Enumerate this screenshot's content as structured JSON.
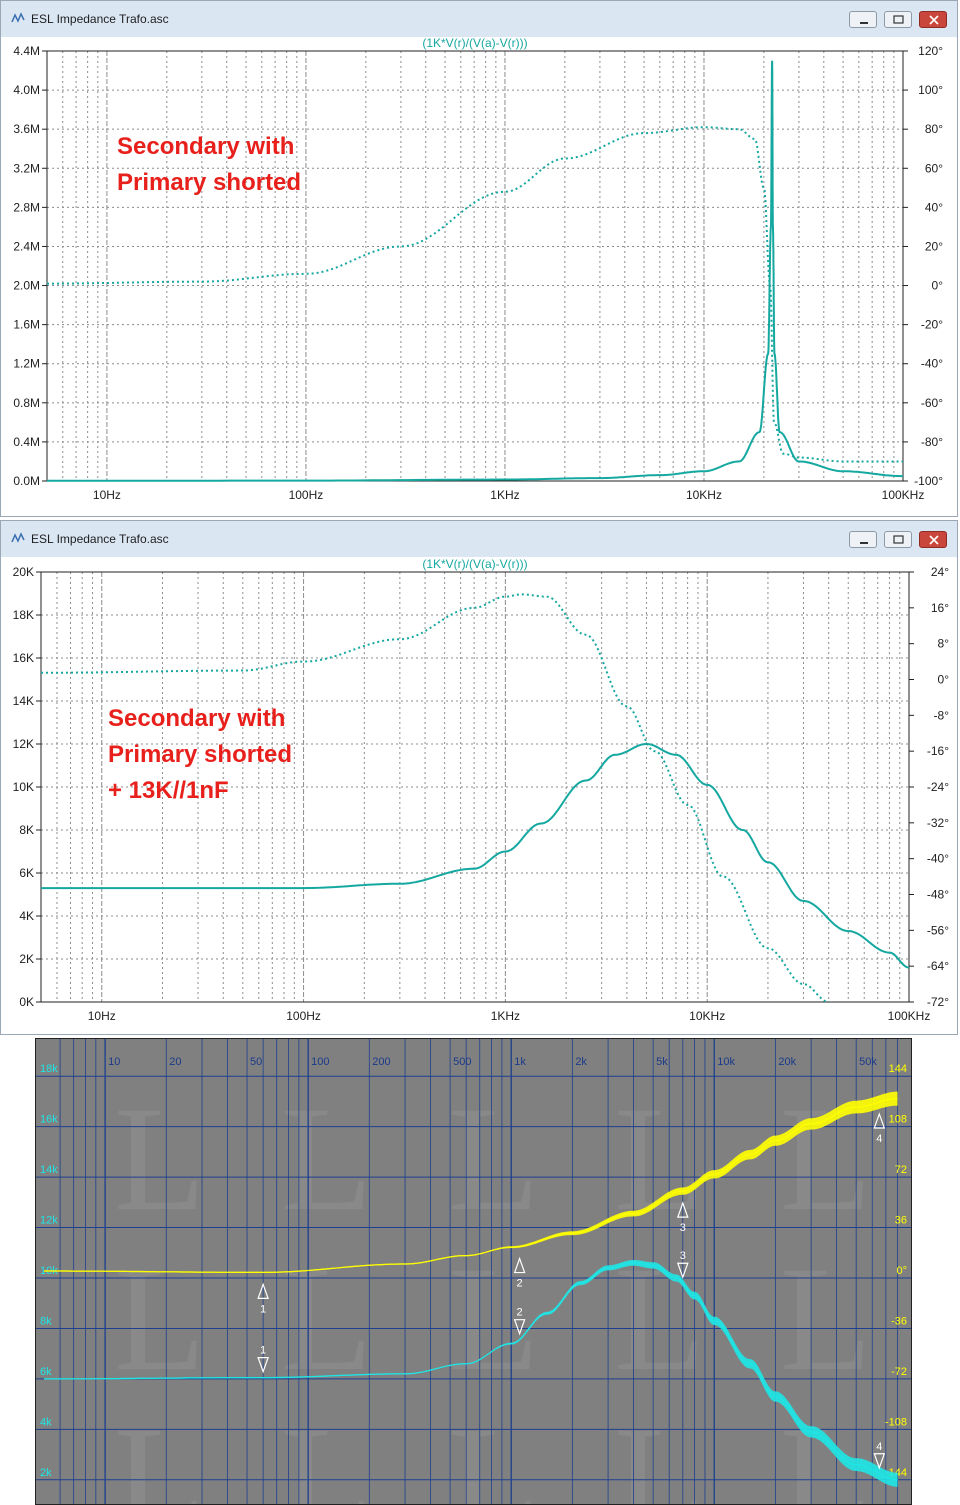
{
  "windows": [
    {
      "title": "ESL Impedance Trafo.asc",
      "trace_label": "(1K*V(r)/(V(a)-V(r)))"
    },
    {
      "title": "ESL Impedance Trafo.asc",
      "trace_label": "(1K*V(r)/(V(a)-V(r)))"
    }
  ],
  "colors": {
    "trace": "#14a8a0",
    "grid": "#8c8c8c",
    "annotation": "#e8201c",
    "panel_bg": "#808080",
    "panel_grid": "#1c3f8f",
    "cyan": "#1ee6e6",
    "yellow": "#ffff00"
  },
  "icons": [
    "chart-app-icon",
    "minimize-icon",
    "restore-icon",
    "close-icon"
  ],
  "chart_data": [
    {
      "type": "line",
      "x_scale": "log",
      "xlim": [
        5,
        100000
      ],
      "x_ticks": [
        10,
        100,
        1000,
        10000,
        100000
      ],
      "x_tick_labels": [
        "10Hz",
        "100Hz",
        "1KHz",
        "10KHz",
        "100KHz"
      ],
      "ylim": [
        0,
        4.4
      ],
      "y_ticks": [
        0,
        0.4,
        0.8,
        1.2,
        1.6,
        2.0,
        2.4,
        2.8,
        3.2,
        3.6,
        4.0,
        4.4
      ],
      "y_tick_labels": [
        "0.0M",
        "0.4M",
        "0.8M",
        "1.2M",
        "1.6M",
        "2.0M",
        "2.4M",
        "2.8M",
        "3.2M",
        "3.6M",
        "4.0M",
        "4.4M"
      ],
      "y2lim": [
        -100,
        120
      ],
      "y2_ticks": [
        -100,
        -80,
        -60,
        -40,
        -20,
        0,
        20,
        40,
        60,
        80,
        100,
        120
      ],
      "y2_tick_labels": [
        "-100°",
        "-80°",
        "-60°",
        "-40°",
        "-20°",
        "0°",
        "20°",
        "40°",
        "60°",
        "80°",
        "100°",
        "120°"
      ],
      "grid": true,
      "annotation_lines": [
        "Secondary with",
        "Primary shorted"
      ],
      "series": [
        {
          "style": "solid",
          "axis": "left",
          "x": [
            5,
            100,
            1000,
            3000,
            6000,
            10000,
            15000,
            19000,
            21000,
            21700,
            22000,
            22200,
            22600,
            24000,
            30000,
            50000,
            100000
          ],
          "y": [
            0.002,
            0.004,
            0.015,
            0.03,
            0.06,
            0.1,
            0.2,
            0.5,
            1.3,
            2.6,
            4.3,
            2.6,
            1.3,
            0.5,
            0.2,
            0.1,
            0.05
          ]
        },
        {
          "style": "dotted",
          "axis": "right",
          "x": [
            5,
            30,
            100,
            300,
            1000,
            2000,
            5000,
            10000,
            15000,
            18000,
            20000,
            21500,
            22500,
            25000,
            30000,
            50000,
            100000
          ],
          "y": [
            1,
            2,
            6,
            20,
            48,
            65,
            78,
            81,
            80,
            75,
            50,
            0,
            -70,
            -86,
            -88,
            -90,
            -90
          ]
        }
      ]
    },
    {
      "type": "line",
      "x_scale": "log",
      "xlim": [
        5,
        100000
      ],
      "x_ticks": [
        10,
        100,
        1000,
        10000,
        100000
      ],
      "x_tick_labels": [
        "10Hz",
        "100Hz",
        "1KHz",
        "10KHz",
        "100KHz"
      ],
      "ylim": [
        0,
        20
      ],
      "y_ticks": [
        0,
        2,
        4,
        6,
        8,
        10,
        12,
        14,
        16,
        18,
        20
      ],
      "y_tick_labels": [
        "0K",
        "2K",
        "4K",
        "6K",
        "8K",
        "10K",
        "12K",
        "14K",
        "16K",
        "18K",
        "20K"
      ],
      "y2lim": [
        -72,
        24
      ],
      "y2_ticks": [
        -72,
        -64,
        -56,
        -48,
        -40,
        -32,
        -24,
        -16,
        -8,
        0,
        8,
        16,
        24
      ],
      "y2_tick_labels": [
        "-72°",
        "-64°",
        "-56°",
        "-48°",
        "-40°",
        "-32°",
        "-24°",
        "-16°",
        "-8°",
        "0°",
        "8°",
        "16°",
        "24°"
      ],
      "grid": true,
      "annotation_lines": [
        "Secondary with",
        "Primary shorted",
        "+ 13K//1nF"
      ],
      "series": [
        {
          "style": "solid",
          "axis": "left",
          "x": [
            5,
            100,
            300,
            700,
            1000,
            1500,
            2500,
            3500,
            5000,
            7000,
            10000,
            15000,
            20000,
            30000,
            50000,
            80000,
            100000
          ],
          "y": [
            5.3,
            5.3,
            5.5,
            6.2,
            7.0,
            8.3,
            10.3,
            11.5,
            12.0,
            11.5,
            10.1,
            8.0,
            6.5,
            4.7,
            3.3,
            2.3,
            1.6
          ]
        },
        {
          "style": "dotted",
          "axis": "right",
          "x": [
            5,
            50,
            100,
            300,
            700,
            1000,
            1200,
            1600,
            2500,
            4000,
            5500,
            8000,
            12000,
            20000,
            30000,
            40000
          ],
          "y": [
            1.5,
            2,
            4,
            9,
            16,
            18.5,
            19,
            18.5,
            10,
            -6,
            -16,
            -28,
            -44,
            -60,
            -68,
            -72
          ]
        }
      ]
    },
    {
      "type": "line",
      "x_scale": "log",
      "xlim": [
        5,
        90000
      ],
      "x_ticks": [
        10,
        20,
        50,
        100,
        200,
        500,
        1000,
        2000,
        5000,
        10000,
        20000,
        50000
      ],
      "x_tick_labels": [
        "10",
        "20",
        "50",
        "100",
        "200",
        "500",
        "1k",
        "2k",
        "5k",
        "10k",
        "20k",
        "50k"
      ],
      "ylim": [
        1,
        19
      ],
      "y_ticks": [
        2,
        4,
        6,
        8,
        10,
        12,
        14,
        16,
        18
      ],
      "y_tick_labels": [
        "2k",
        "4k",
        "6k",
        "8k",
        "10k",
        "12k",
        "14k",
        "16k",
        "18k"
      ],
      "y2lim": [
        -162,
        162
      ],
      "y2_ticks": [
        -144,
        -108,
        -72,
        -36,
        0,
        36,
        72,
        108,
        144
      ],
      "y2_tick_labels": [
        "-144",
        "-108",
        "-72",
        "-36",
        "0°",
        "36",
        "72",
        "108",
        "144"
      ],
      "grid": true,
      "markers": [
        {
          "label": "1",
          "x": 60
        },
        {
          "label": "2",
          "x": 1100
        },
        {
          "label": "3",
          "x": 7000
        },
        {
          "label": "4",
          "x": 65000
        }
      ],
      "series": [
        {
          "style": "cyan",
          "axis": "left",
          "x": [
            5,
            60,
            300,
            600,
            1000,
            1500,
            2200,
            3000,
            4000,
            5000,
            6500,
            8000,
            10000,
            15000,
            20000,
            30000,
            50000,
            80000
          ],
          "y": [
            6.0,
            6.05,
            6.2,
            6.6,
            7.4,
            8.6,
            9.8,
            10.4,
            10.6,
            10.5,
            10.0,
            9.3,
            8.3,
            6.6,
            5.3,
            3.9,
            2.6,
            2.0
          ]
        },
        {
          "style": "yellow",
          "axis": "right",
          "x": [
            5,
            60,
            300,
            600,
            1000,
            2000,
            4000,
            7000,
            10000,
            15000,
            20000,
            30000,
            50000,
            80000
          ],
          "y": [
            5,
            4,
            10,
            16,
            22,
            32,
            46,
            62,
            74,
            88,
            98,
            110,
            122,
            128
          ]
        }
      ]
    }
  ]
}
